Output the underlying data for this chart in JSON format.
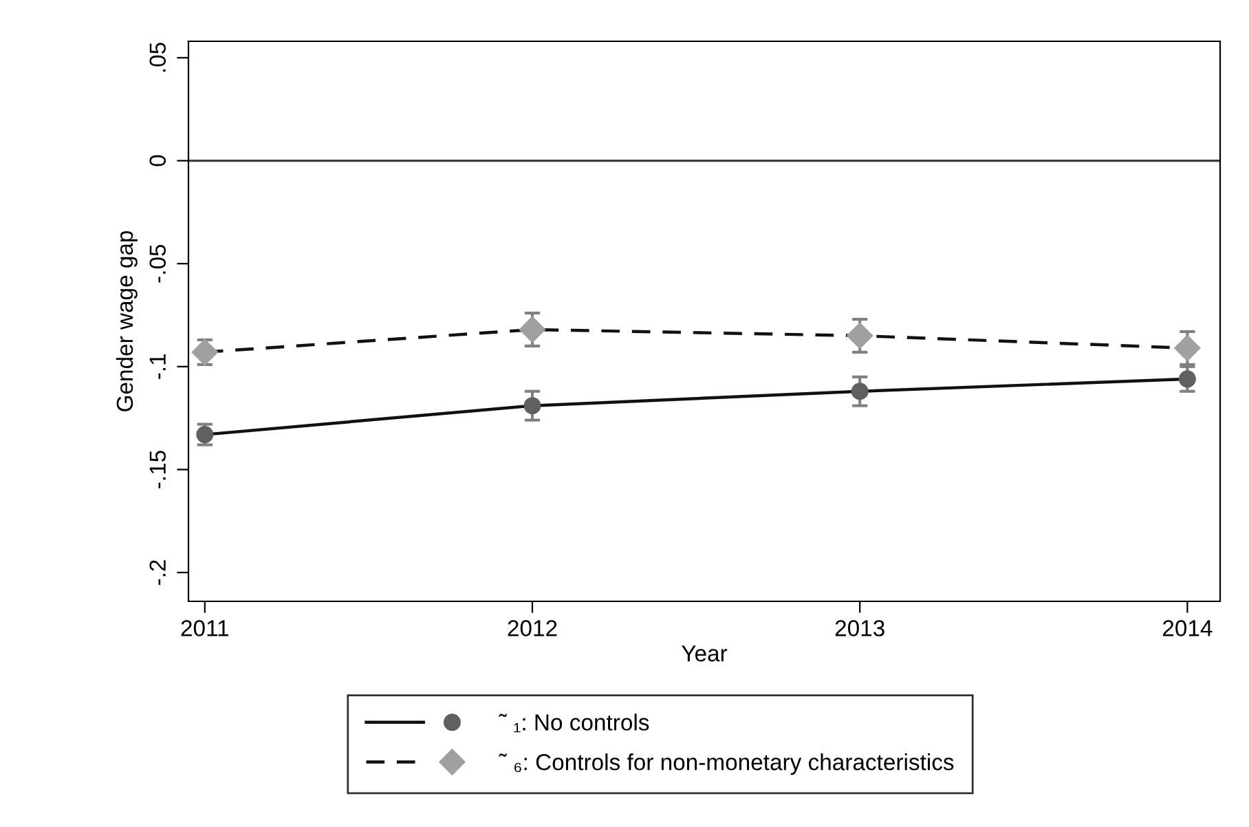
{
  "chart_data": {
    "type": "line",
    "xlabel": "Year",
    "ylabel": "Gender wage gap",
    "x": [
      2011,
      2012,
      2013,
      2014
    ],
    "xlim": [
      2010.95,
      2014.1
    ],
    "xticks": [
      2011,
      2012,
      2013,
      2014
    ],
    "ylim": [
      -0.214,
      0.058
    ],
    "yticks": [
      {
        "value": -0.2,
        "label": "-.2"
      },
      {
        "value": -0.15,
        "label": "-.15"
      },
      {
        "value": -0.1,
        "label": "-.1"
      },
      {
        "value": -0.05,
        "label": "-.05"
      },
      {
        "value": 0,
        "label": "0"
      },
      {
        "value": 0.05,
        "label": ".05"
      }
    ],
    "grid": false,
    "legend": "bottom",
    "ref_lines": [
      {
        "axis": "y",
        "value": 0,
        "color": "#404040",
        "line_style": "solid"
      }
    ],
    "series": [
      {
        "name": "˜ ₁: No controls",
        "color": "#606060",
        "marker": "circle",
        "line_style": "solid",
        "values": [
          -0.133,
          -0.119,
          -0.112,
          -0.106
        ],
        "errors": [
          0.005,
          0.007,
          0.007,
          0.006
        ]
      },
      {
        "name": "˜ ₆: Controls for non-monetary characteristics",
        "color": "#a0a0a0",
        "marker": "diamond",
        "line_style": "dashed",
        "values": [
          -0.093,
          -0.082,
          -0.085,
          -0.091
        ],
        "errors": [
          0.006,
          0.008,
          0.008,
          0.008
        ]
      }
    ]
  }
}
